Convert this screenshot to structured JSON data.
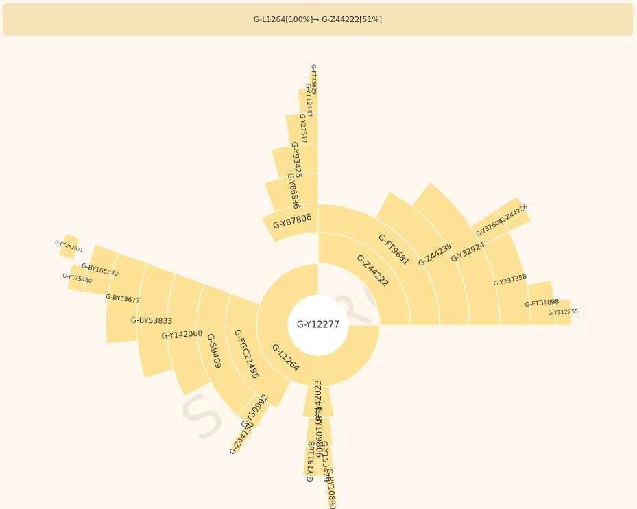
{
  "breadcrumb": {
    "path": "G-L1264[100%]→ G-Z44222[51%]"
  },
  "watermark": "SEMARGL",
  "colors": {
    "segment": "#fde194",
    "segment_stroke": "#ffffff",
    "background": "#fdf7ee",
    "breadcrumb_bg": "#f4e3b8"
  },
  "chart_data": {
    "type": "sunburst",
    "root": "G-Y12277",
    "nodes": [
      {
        "name": "G-L1264",
        "parent": "G-Y12277",
        "level": 1,
        "start": 90,
        "end": 360
      },
      {
        "name": "G-Z44222",
        "parent": "G-L1264",
        "level": 2,
        "start": 0,
        "end": 90
      },
      {
        "name": "G-FT9681",
        "parent": "G-Z44222",
        "level": 3,
        "start": 0,
        "end": 90
      },
      {
        "name": "G-Z44239",
        "parent": "G-FT9681",
        "level": 4,
        "start": 28,
        "end": 90
      },
      {
        "name": "G-Y32924",
        "parent": "G-Z44239",
        "level": 5,
        "start": 38,
        "end": 90
      },
      {
        "name": "G-Y237358",
        "parent": "G-Y32924",
        "level": 6,
        "start": 64,
        "end": 90
      },
      {
        "name": "G-Y32606",
        "parent": "G-Y32924",
        "level": 6,
        "start": 57,
        "end": 64
      },
      {
        "name": "G-Z44226",
        "parent": "G-Y32606",
        "level": 7,
        "start": 57,
        "end": 64
      },
      {
        "name": "G-FTB4098",
        "parent": "G-Y237358",
        "level": 7,
        "start": 79,
        "end": 90
      },
      {
        "name": "G-Y312255",
        "parent": "G-FTB4098",
        "level": 8,
        "start": 84,
        "end": 90
      },
      {
        "name": "G-Y87806",
        "parent": "G-Z44222",
        "level": 3,
        "start": -28,
        "end": 0
      },
      {
        "name": "G-Y86896",
        "parent": "G-Y87806",
        "level": 4,
        "start": -21,
        "end": 0
      },
      {
        "name": "G-Y93425",
        "parent": "G-Y86896",
        "level": 5,
        "start": -15,
        "end": 0
      },
      {
        "name": "G-Y27517",
        "parent": "G-Y93425",
        "level": 6,
        "start": -9,
        "end": 0
      },
      {
        "name": "G-Y112447",
        "parent": "G-Y27517",
        "level": 7,
        "start": -5,
        "end": 0
      },
      {
        "name": "G-FT43629",
        "parent": "G-Y112447",
        "level": 8,
        "start": -2,
        "end": 0
      },
      {
        "name": "G-FGC21495",
        "parent": "G-L1264",
        "level": 2,
        "start": 206,
        "end": 290
      },
      {
        "name": "G-S9409",
        "parent": "G-FGC21495",
        "level": 3,
        "start": 222,
        "end": 290
      },
      {
        "name": "G-Y142068",
        "parent": "G-S9409",
        "level": 4,
        "start": 242,
        "end": 290
      },
      {
        "name": "G-BY53833",
        "parent": "G-Y142068",
        "level": 5,
        "start": 253,
        "end": 290
      },
      {
        "name": "G-BY53677",
        "parent": "G-BY53833",
        "level": 6,
        "start": 265,
        "end": 290
      },
      {
        "name": "G-BY165872",
        "parent": "G-BY53677",
        "level": 7,
        "start": 278,
        "end": 290
      },
      {
        "name": "G-Y175460",
        "parent": "G-BY165872",
        "level": 8,
        "start": 278,
        "end": 284
      },
      {
        "name": "G-FT282871",
        "parent": "G-BY165872",
        "level": 9,
        "start": 285,
        "end": 290
      },
      {
        "name": "G-Y30992",
        "parent": "G-FGC21495",
        "level": 3,
        "start": 211,
        "end": 222
      },
      {
        "name": "G-Z44150",
        "parent": "G-Y30992",
        "level": 4,
        "start": 212,
        "end": 216
      },
      {
        "name": "G-Y142023",
        "parent": "G-L1264",
        "level": 2,
        "start": 170,
        "end": 190
      },
      {
        "name": "G-BY109806",
        "parent": "G-Y142023",
        "level": 3,
        "start": 173,
        "end": 186
      },
      {
        "name": "G-Y153479",
        "parent": "G-BY109806",
        "level": 4,
        "start": 174,
        "end": 180
      },
      {
        "name": "G-Y181188",
        "parent": "G-BY109806",
        "level": 4,
        "start": 180,
        "end": 186
      },
      {
        "name": "G-BY108805",
        "parent": "G-Y153479",
        "level": 5,
        "start": 174,
        "end": 177
      }
    ]
  }
}
